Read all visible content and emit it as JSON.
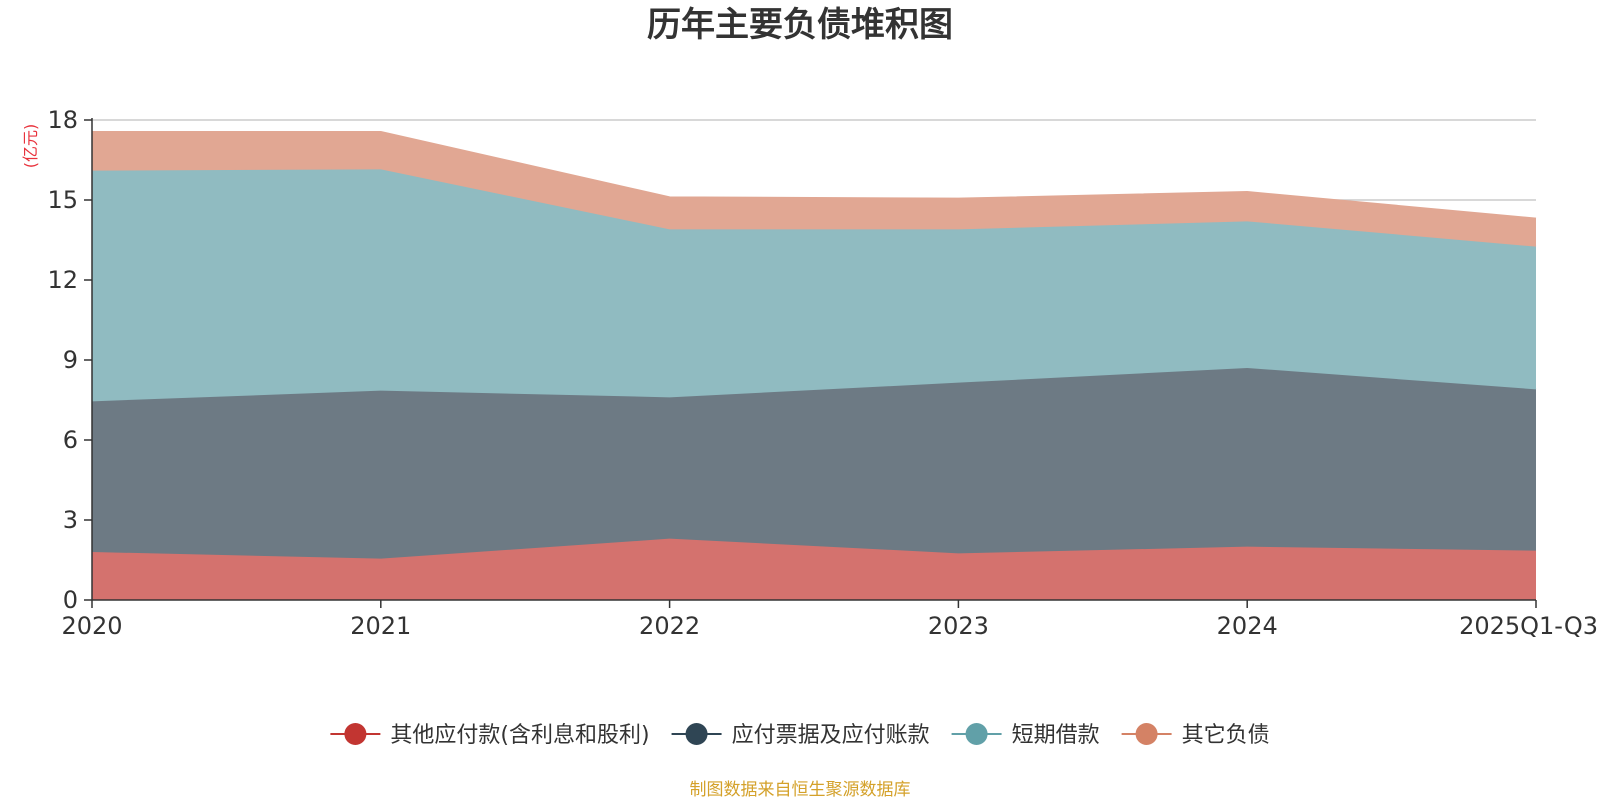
{
  "chart_data": {
    "type": "area",
    "stacked": true,
    "title": "历年主要负债堆积图",
    "unit": "(亿元)",
    "categories": [
      "2020",
      "2021",
      "2022",
      "2023",
      "2024",
      "2025Q1-Q3"
    ],
    "ylim": [
      0,
      18
    ],
    "yticks": [
      "0",
      "3",
      "6",
      "9",
      "12",
      "15",
      "18"
    ],
    "grid": true,
    "legend_position": "bottom",
    "series": [
      {
        "name": "其他应付款(含利息和股利)",
        "color": "#c23531",
        "fill": "#d4726e",
        "values": [
          1.8,
          1.55,
          2.3,
          1.75,
          2.0,
          1.85
        ]
      },
      {
        "name": "应付票据及应付账款",
        "color": "#2f4554",
        "fill": "#6d7a84",
        "values": [
          5.65,
          6.3,
          5.3,
          6.4,
          6.7,
          6.05
        ]
      },
      {
        "name": "短期借款",
        "color": "#61a0a8",
        "fill": "#90bbc1",
        "values": [
          8.65,
          8.3,
          6.3,
          5.75,
          5.5,
          5.35
        ]
      },
      {
        "name": "其它负债",
        "color": "#d48265",
        "fill": "#e1a793",
        "values": [
          1.45,
          1.4,
          1.2,
          1.15,
          1.1,
          1.05
        ]
      }
    ],
    "source": "制图数据来自恒生聚源数据库",
    "colors": {
      "unit": "#e8323c",
      "source": "#d4a12a",
      "axis": "#333333",
      "grid": "#cccccc"
    }
  }
}
